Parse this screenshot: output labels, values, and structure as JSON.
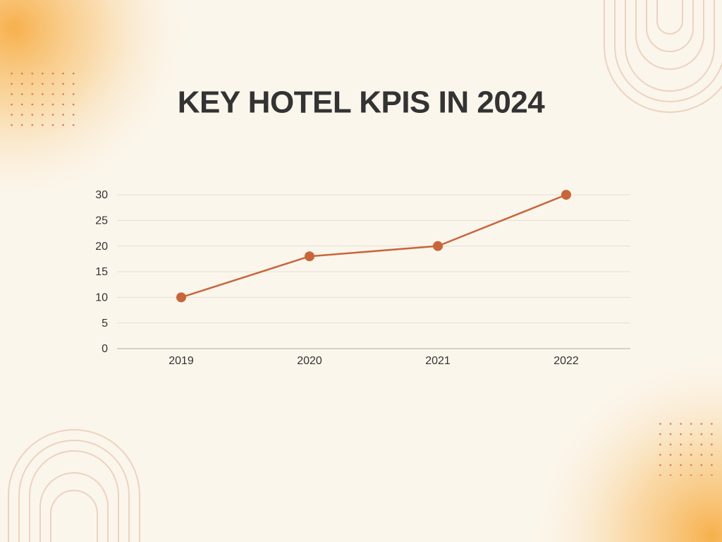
{
  "chart_data": {
    "type": "line",
    "title": "KEY HOTEL KPIS IN 2024",
    "categories": [
      "2019",
      "2020",
      "2021",
      "2022"
    ],
    "values": [
      10,
      18,
      20,
      30
    ],
    "color": "#c8663a",
    "ylim": [
      0,
      30
    ],
    "yticks": [
      0,
      5,
      10,
      15,
      20,
      25,
      30
    ],
    "grid": true
  }
}
